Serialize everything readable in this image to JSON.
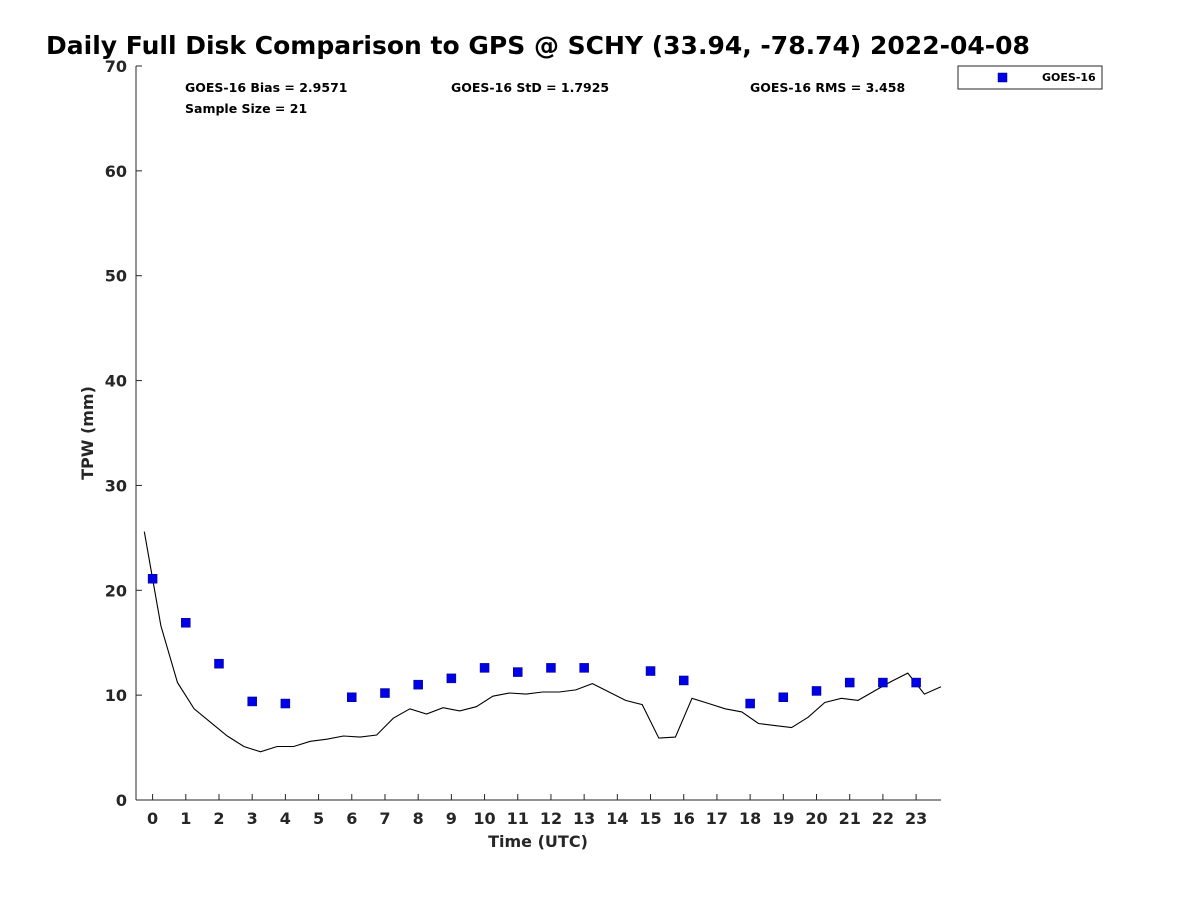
{
  "chart_data": {
    "type": "scatter",
    "title": "Daily Full Disk Comparison to GPS @ SCHY (33.94, -78.74) 2022-04-08",
    "xlabel": "Time (UTC)",
    "ylabel": "TPW (mm)",
    "xlim": [
      -0.5,
      23.75
    ],
    "ylim": [
      0,
      70
    ],
    "xticks": [
      0,
      1,
      2,
      3,
      4,
      5,
      6,
      7,
      8,
      9,
      10,
      11,
      12,
      13,
      14,
      15,
      16,
      17,
      18,
      19,
      20,
      21,
      22,
      23
    ],
    "yticks": [
      0,
      10,
      20,
      30,
      40,
      50,
      60,
      70
    ],
    "grid": false,
    "legend_position": "top-right, outside plot",
    "series": [
      {
        "name": "GOES-16",
        "kind": "markers",
        "marker": "square",
        "color": "#0000e6",
        "x": [
          0,
          1,
          2,
          3,
          4,
          6,
          7,
          8,
          9,
          10,
          11,
          12,
          13,
          15,
          16,
          18,
          19,
          20,
          21,
          22,
          23
        ],
        "y": [
          21.1,
          16.9,
          13.0,
          9.4,
          9.2,
          9.8,
          10.2,
          11.0,
          11.6,
          12.6,
          12.2,
          12.6,
          12.6,
          12.3,
          11.4,
          9.2,
          9.8,
          10.4,
          11.2,
          11.2,
          11.2
        ]
      },
      {
        "kind": "line",
        "color": "#000000",
        "x": [
          -0.25,
          0.25,
          0.75,
          1.25,
          1.75,
          2.25,
          2.75,
          3.25,
          3.75,
          4.25,
          4.75,
          5.25,
          5.75,
          6.25,
          6.75,
          7.25,
          7.75,
          8.25,
          8.75,
          9.25,
          9.75,
          10.25,
          10.75,
          11.25,
          11.75,
          12.25,
          12.75,
          13.25,
          13.75,
          14.25,
          14.75,
          15.25,
          15.75,
          16.25,
          16.75,
          17.25,
          17.75,
          18.25,
          18.75,
          19.25,
          19.75,
          20.25,
          20.75,
          21.25,
          21.75,
          22.25,
          22.75,
          23.25,
          23.75
        ],
        "y": [
          25.6,
          16.6,
          11.2,
          8.7,
          7.4,
          6.1,
          5.1,
          4.6,
          5.1,
          5.1,
          5.6,
          5.8,
          6.1,
          6.0,
          6.2,
          7.8,
          8.7,
          8.2,
          8.8,
          8.5,
          8.9,
          9.9,
          10.2,
          10.1,
          10.3,
          10.3,
          10.5,
          11.1,
          10.3,
          9.5,
          9.1,
          5.9,
          6.0,
          9.7,
          9.2,
          8.7,
          8.4,
          7.3,
          7.1,
          6.9,
          7.9,
          9.3,
          9.7,
          9.5,
          10.4,
          11.3,
          12.1,
          10.1,
          10.8
        ]
      }
    ],
    "annotations": {
      "bias": "GOES-16 Bias = 2.9571",
      "std": "GOES-16 StD = 1.7925",
      "rms": "GOES-16 RMS = 3.458",
      "sample": "Sample Size = 21"
    },
    "legend": [
      {
        "label": "GOES-16",
        "marker": "square",
        "color": "#0000e6"
      }
    ]
  }
}
